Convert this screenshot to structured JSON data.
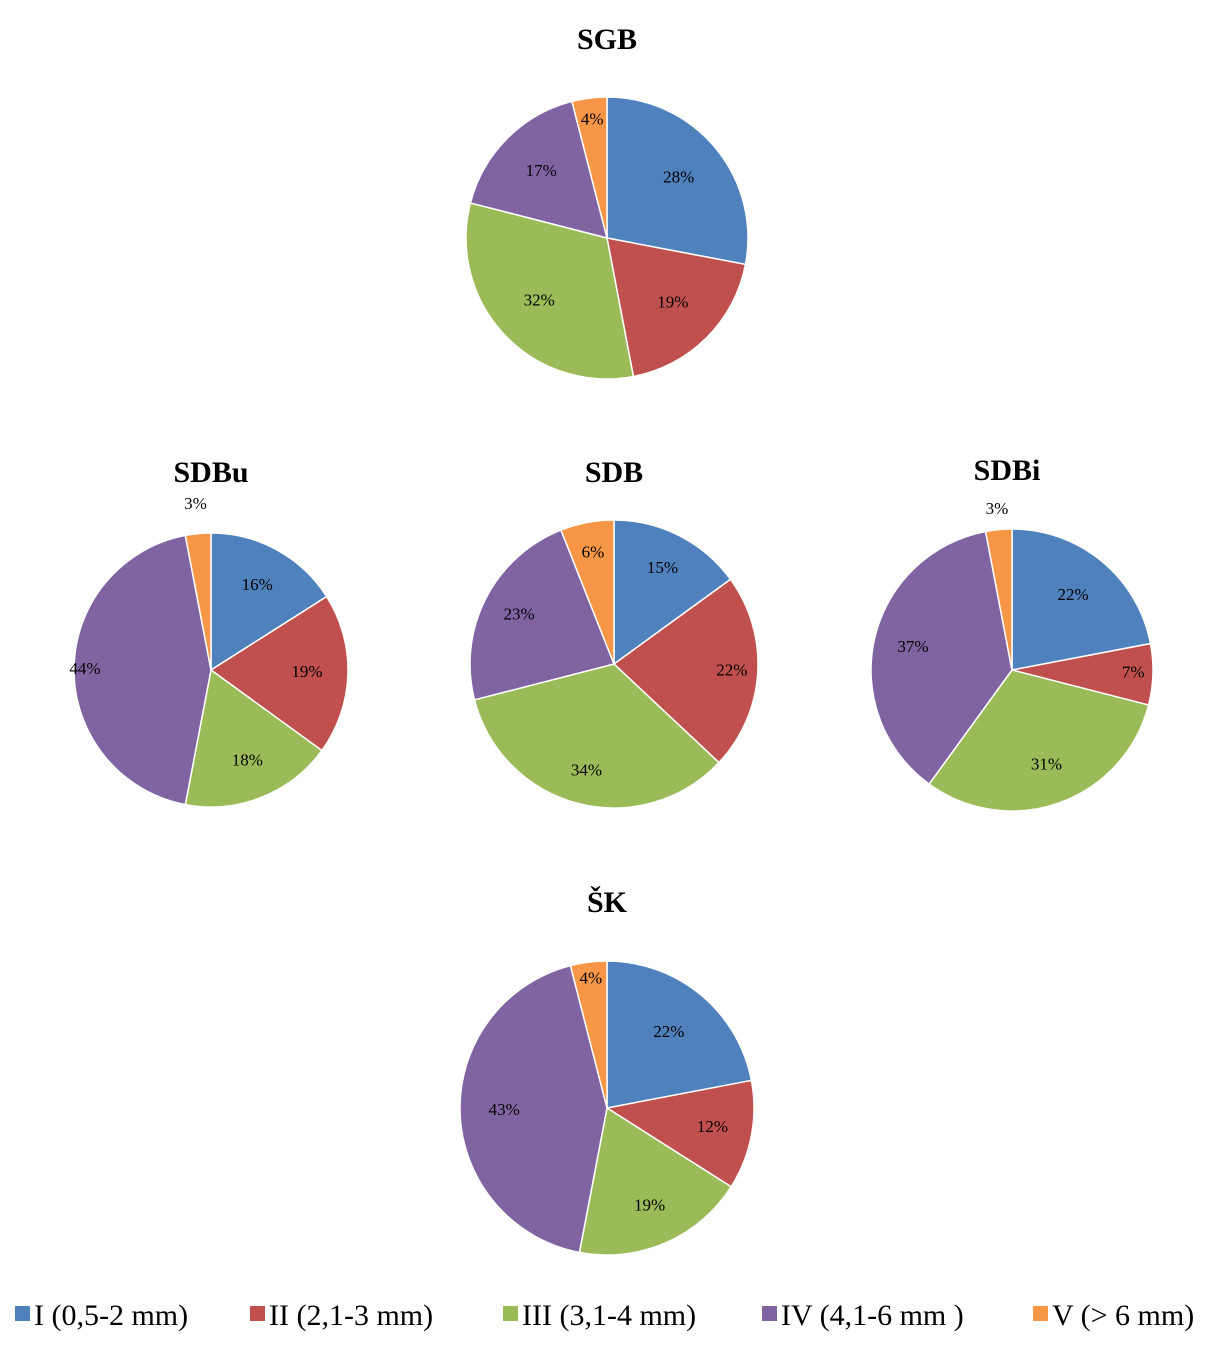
{
  "legend": [
    {
      "label": "I (0,5-2 mm)",
      "color": "#4F81BD"
    },
    {
      "label": "II (2,1-3 mm)",
      "color": "#C0504D"
    },
    {
      "label": "III (3,1-4 mm)",
      "color": "#9BBB59"
    },
    {
      "label": "IV (4,1-6 mm )",
      "color": "#8064A2"
    },
    {
      "label": "V (> 6 mm)",
      "color": "#F79646"
    }
  ],
  "chart_data": [
    {
      "type": "pie",
      "title": "SGB",
      "categories": [
        "I (0,5-2 mm)",
        "II (2,1-3 mm)",
        "III (3,1-4 mm)",
        "IV (4,1-6 mm )",
        "V (> 6 mm)"
      ],
      "values": [
        28,
        19,
        32,
        17,
        4
      ],
      "labels": [
        "28%",
        "19%",
        "32%",
        "17%",
        "4%"
      ]
    },
    {
      "type": "pie",
      "title": "SDBu",
      "categories": [
        "I (0,5-2 mm)",
        "II (2,1-3 mm)",
        "III (3,1-4 mm)",
        "IV (4,1-6 mm )",
        "V (> 6 mm)"
      ],
      "values": [
        16,
        19,
        18,
        44,
        3
      ],
      "labels": [
        "16%",
        "19%",
        "18%",
        "44%",
        "3%"
      ]
    },
    {
      "type": "pie",
      "title": "SDB",
      "categories": [
        "I (0,5-2 mm)",
        "II (2,1-3 mm)",
        "III (3,1-4 mm)",
        "IV (4,1-6 mm )",
        "V (> 6 mm)"
      ],
      "values": [
        15,
        22,
        34,
        23,
        6
      ],
      "labels": [
        "15%",
        "22%",
        "34%",
        "23%",
        "6%"
      ]
    },
    {
      "type": "pie",
      "title": "SDBi",
      "categories": [
        "I (0,5-2 mm)",
        "II (2,1-3 mm)",
        "III (3,1-4 mm)",
        "IV (4,1-6 mm )",
        "V (> 6 mm)"
      ],
      "values": [
        22,
        7,
        31,
        37,
        3
      ],
      "labels": [
        "22%",
        "7%",
        "31%",
        "37%",
        "3%"
      ]
    },
    {
      "type": "pie",
      "title": "ŠK",
      "categories": [
        "I (0,5-2 mm)",
        "II (2,1-3 mm)",
        "III (3,1-4 mm)",
        "IV (4,1-6 mm )",
        "V (> 6 mm)"
      ],
      "values": [
        22,
        12,
        19,
        43,
        4
      ],
      "labels": [
        "22%",
        "12%",
        "19%",
        "43%",
        "4%"
      ]
    }
  ]
}
